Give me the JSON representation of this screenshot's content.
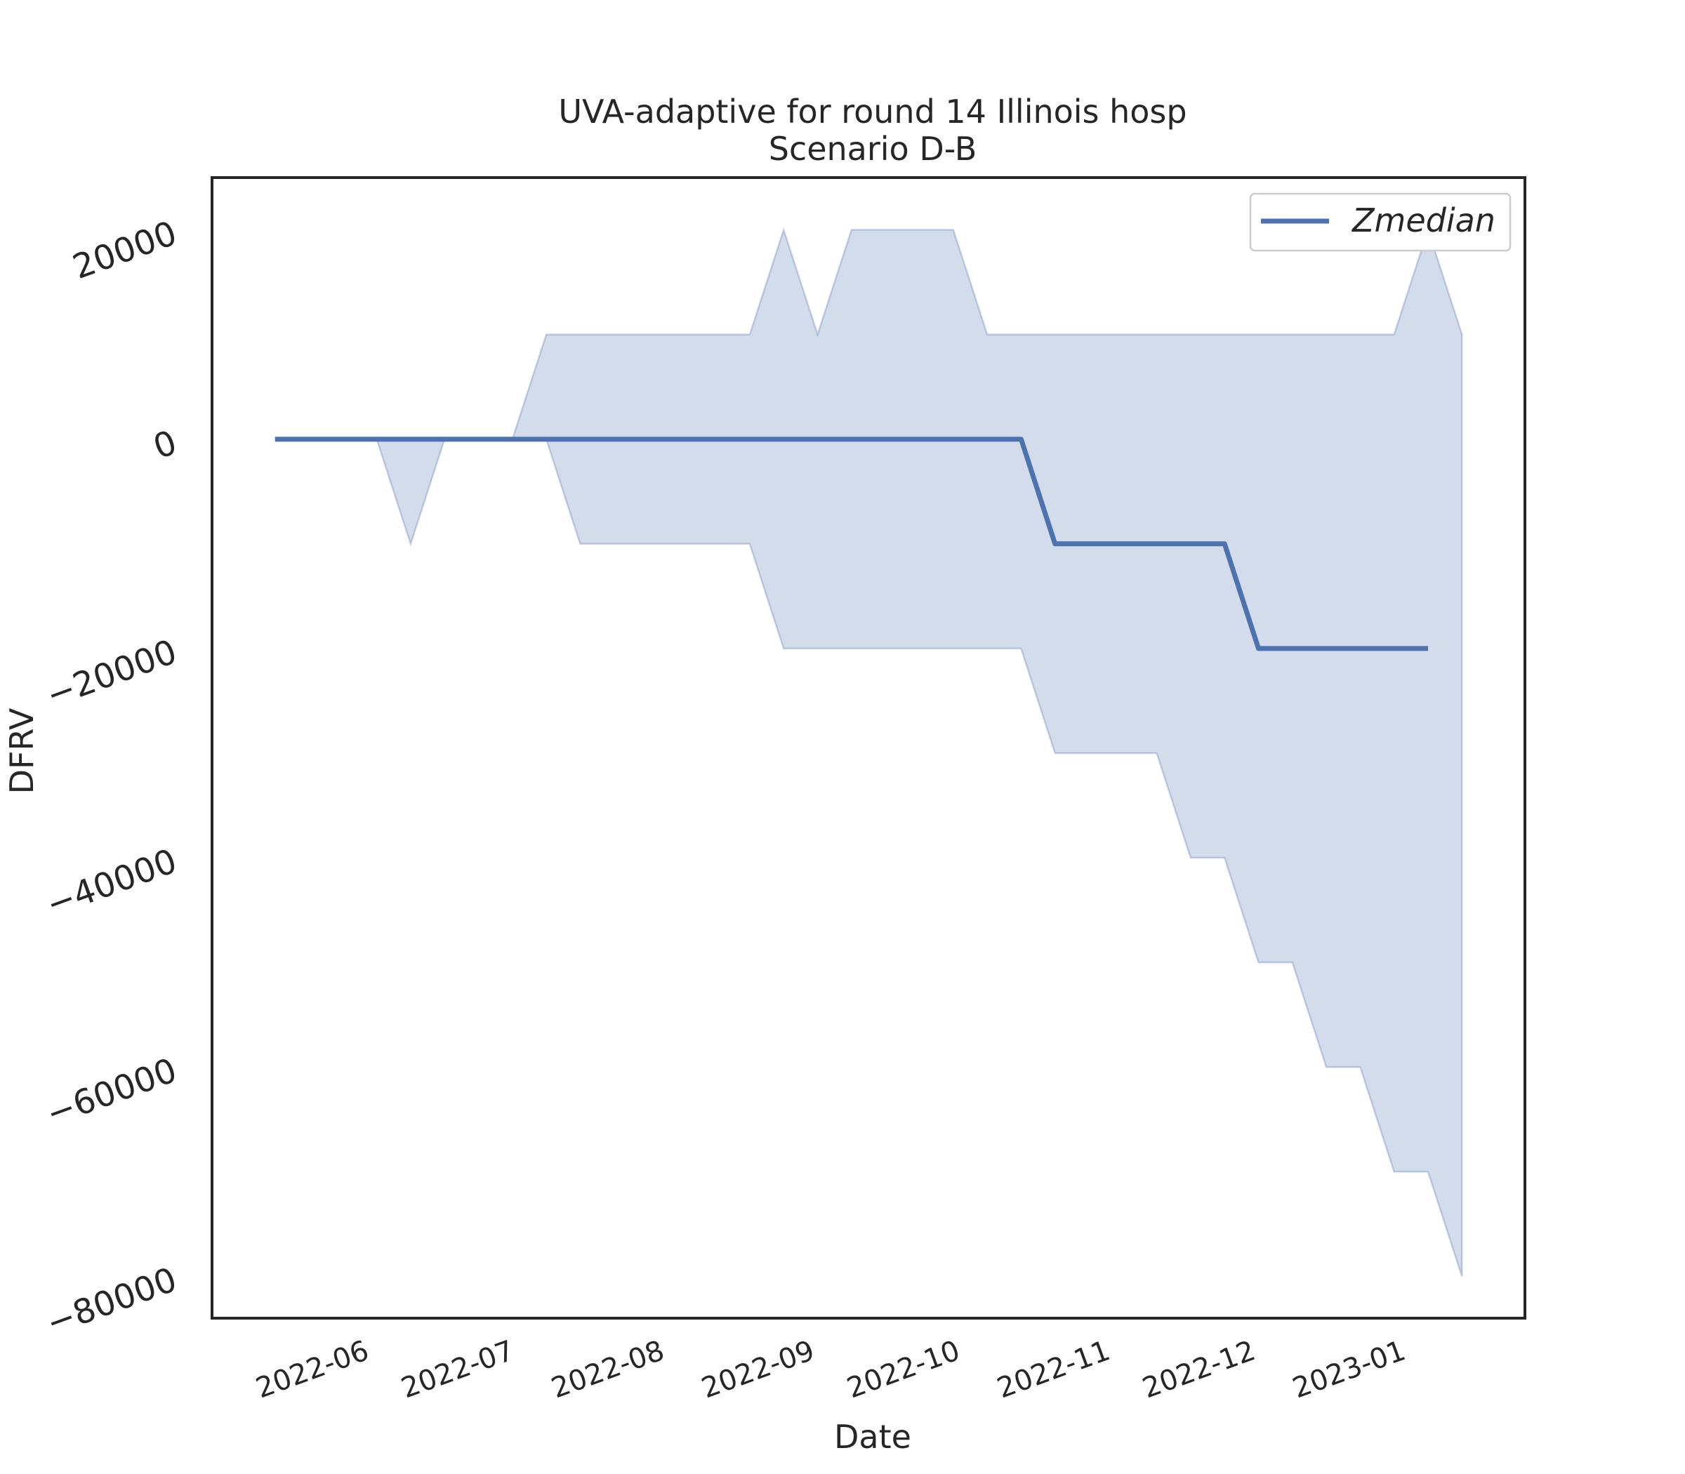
{
  "chart_data": {
    "type": "line",
    "title": "UVA-adaptive for round 14 Illinois hosp",
    "subtitle": "Scenario D-B",
    "xlabel": "Date",
    "ylabel": "DFRV",
    "x_ticks": [
      "2022-06",
      "2022-07",
      "2022-08",
      "2022-09",
      "2022-10",
      "2022-11",
      "2022-12",
      "2023-01"
    ],
    "y_ticks": [
      20000,
      0,
      -20000,
      -40000,
      -60000,
      -80000
    ],
    "y_tick_labels": [
      "20000",
      "0",
      "−20000",
      "−40000",
      "−60000",
      "−80000"
    ],
    "xlim": [
      "2022-05-01",
      "2023-01-27"
    ],
    "ylim": [
      -84000,
      25000
    ],
    "grid": false,
    "legend": {
      "placement": "top-right",
      "entries": [
        "Zmedian"
      ]
    },
    "colors": {
      "line": "#4c72b0",
      "band": "#4c72b0",
      "axes": "#262626"
    },
    "x": [
      "2022-05-14",
      "2022-05-21",
      "2022-05-28",
      "2022-06-04",
      "2022-06-11",
      "2022-06-18",
      "2022-06-25",
      "2022-07-02",
      "2022-07-09",
      "2022-07-16",
      "2022-07-23",
      "2022-07-30",
      "2022-08-06",
      "2022-08-13",
      "2022-08-20",
      "2022-08-27",
      "2022-09-03",
      "2022-09-10",
      "2022-09-17",
      "2022-09-24",
      "2022-10-01",
      "2022-10-08",
      "2022-10-15",
      "2022-10-22",
      "2022-10-29",
      "2022-11-05",
      "2022-11-12",
      "2022-11-19",
      "2022-11-26",
      "2022-12-03",
      "2022-12-10",
      "2022-12-17",
      "2022-12-24",
      "2022-12-31",
      "2023-01-07"
    ],
    "series": [
      {
        "name": "Zmedian",
        "values": [
          0,
          0,
          0,
          0,
          0,
          0,
          0,
          0,
          0,
          0,
          0,
          0,
          0,
          0,
          0,
          0,
          0,
          0,
          0,
          0,
          0,
          0,
          0,
          -10000,
          -10000,
          -10000,
          -10000,
          -10000,
          -10000,
          -20000,
          -20000,
          -20000,
          -20000,
          -20000,
          -20000
        ]
      }
    ],
    "band": {
      "lower": [
        0,
        0,
        0,
        0,
        -10000,
        0,
        0,
        0,
        0,
        -10000,
        -10000,
        -10000,
        -10000,
        -10000,
        -10000,
        -20000,
        -20000,
        -20000,
        -20000,
        -20000,
        -20000,
        -20000,
        -20000,
        -30000,
        -30000,
        -30000,
        -30000,
        -40000,
        -40000,
        -50000,
        -50000,
        -60000,
        -60000,
        -70000,
        -70000,
        -80000
      ],
      "upper": [
        0,
        0,
        0,
        0,
        0,
        0,
        0,
        0,
        10000,
        10000,
        10000,
        10000,
        10000,
        10000,
        10000,
        20000,
        10000,
        20000,
        20000,
        20000,
        20000,
        10000,
        10000,
        10000,
        10000,
        10000,
        10000,
        10000,
        10000,
        10000,
        10000,
        10000,
        10000,
        10000,
        20000,
        10000
      ]
    },
    "band_x": [
      "2022-05-14",
      "2022-05-21",
      "2022-05-28",
      "2022-06-04",
      "2022-06-11",
      "2022-06-18",
      "2022-06-25",
      "2022-07-02",
      "2022-07-09",
      "2022-07-16",
      "2022-07-23",
      "2022-07-30",
      "2022-08-06",
      "2022-08-13",
      "2022-08-20",
      "2022-08-27",
      "2022-09-03",
      "2022-09-10",
      "2022-09-17",
      "2022-09-24",
      "2022-10-01",
      "2022-10-08",
      "2022-10-15",
      "2022-10-22",
      "2022-10-29",
      "2022-11-05",
      "2022-11-12",
      "2022-11-19",
      "2022-11-26",
      "2022-12-03",
      "2022-12-10",
      "2022-12-17",
      "2022-12-24",
      "2022-12-31",
      "2023-01-07",
      "2023-01-14"
    ]
  }
}
